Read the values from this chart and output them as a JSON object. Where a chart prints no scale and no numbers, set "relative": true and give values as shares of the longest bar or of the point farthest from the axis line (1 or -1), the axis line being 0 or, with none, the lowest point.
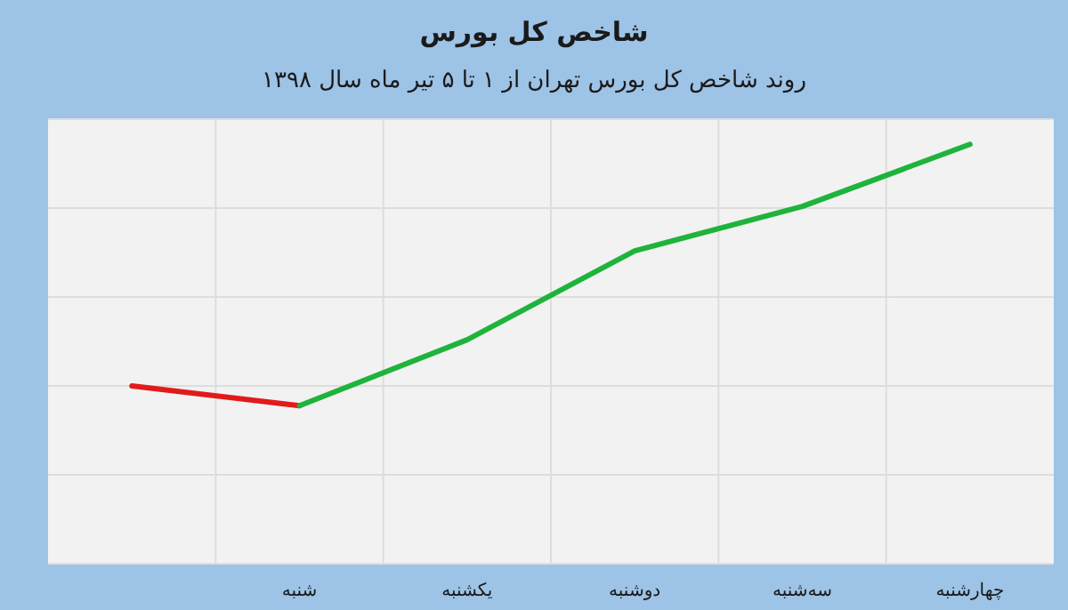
{
  "chart_data": {
    "type": "line",
    "title": "شاخص کل بورس",
    "subtitle": "روند شاخص کل بورس تهران از ۱ تا ۵ تیر ماه سال ۱۳۹۸",
    "relative": true,
    "grid": true,
    "marker": "none",
    "line_style": "solid",
    "categories": [
      null,
      "شنبه",
      "یکشنبه",
      "دوشنبه",
      "سه‌شنبه",
      "چهارشنبه"
    ],
    "series": [
      {
        "color": "#e21a1a",
        "values": [
          0.424,
          0.377,
          null,
          null,
          null,
          null
        ]
      },
      {
        "color": "#1fb33c",
        "values": [
          null,
          0.377,
          0.534,
          0.746,
          0.852,
          1
        ]
      }
    ]
  }
}
